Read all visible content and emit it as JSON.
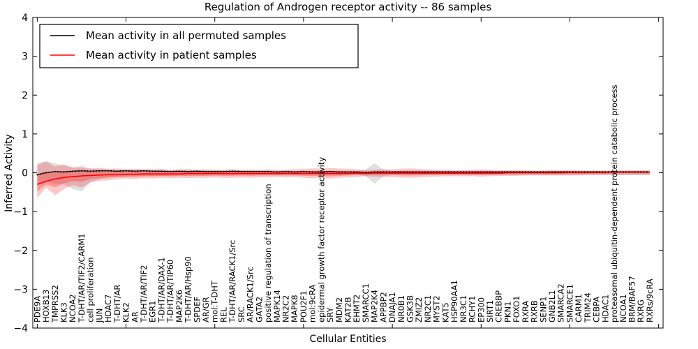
{
  "chart_data": {
    "type": "line",
    "title": "Regulation of Androgen receptor activity -- 86 samples",
    "xlabel": "Cellular Entities",
    "ylabel": "Inferred Activity",
    "ylim": [
      -4,
      4
    ],
    "yticks": [
      4,
      3,
      2,
      1,
      0,
      -1,
      -2,
      -3,
      -4
    ],
    "ytick_labels": [
      "4",
      "3",
      "2",
      "1",
      "0",
      "−1",
      "−2",
      "−3",
      "−4"
    ],
    "xtick_indices": [
      0,
      10,
      20,
      30,
      40,
      50,
      60,
      70
    ],
    "grid": false,
    "legend_position": "upper left",
    "legend": {
      "entries": [
        {
          "label": "Mean activity in all permuted samples",
          "color": "#000000"
        },
        {
          "label": "Mean activity in patient samples",
          "color": "#ff0000"
        }
      ]
    },
    "categories": [
      "PDE9A",
      "HOXB13",
      "TMPRSS2",
      "KLK3",
      "NCOA2",
      "T-DHT/AR/TIF2/CARM1",
      "cell proliferation",
      "JUN",
      "HDAC7",
      "T-DHT/AR",
      "KLK2",
      "AR",
      "T-DHT/AR/TIF2",
      "EGR1",
      "T-DHT/AR/DAX-1",
      "T-DHT/AR/TIP60",
      "MAP2K6",
      "T-DHT/AR/Hsp90",
      "SPDEF",
      "AR/GR",
      "mol:T-DHT",
      "REL",
      "T-DHT/AR/RACK1/Src",
      "SRC",
      "AR/RACK1/Src",
      "GATA2",
      "positive regulation of transcription",
      "MAPK14",
      "NR2C2",
      "MAPK8",
      "POU2F1",
      "mol:9cRA",
      "epidermal growth factor receptor activity",
      "SRY",
      "MDM2",
      "KAT2B",
      "EHMT2",
      "SMARCC1",
      "MAP2K4",
      "APPBP2",
      "DNAJA1",
      "NR0B1",
      "GSK3B",
      "ZMIZ2",
      "NR2C1",
      "MYST2",
      "KAT5",
      "HSP90AA1",
      "NR3C1",
      "RCHY1",
      "EP300",
      "SIRT1",
      "CREBBP",
      "PKN1",
      "FOXO1",
      "RXRA",
      "RXRB",
      "SENP1",
      "GNB2L1",
      "SMARCA2",
      "SMARCE1",
      "CARM1",
      "TRIM24",
      "CEBPA",
      "HDAC1",
      "proteasomal ubiquitin-dependent protein catabolic process",
      "NCOA1",
      "BRM/BAF57",
      "RXRG",
      "RXRs/9cRA"
    ],
    "series": [
      {
        "name": "Mean activity in all permuted samples",
        "color": "#000000",
        "values": [
          -0.05,
          0.0,
          0.03,
          0.02,
          0.04,
          0.05,
          0.04,
          0.05,
          0.05,
          0.04,
          0.05,
          0.04,
          0.05,
          0.04,
          0.04,
          0.03,
          0.04,
          0.03,
          0.04,
          0.03,
          0.03,
          0.03,
          0.04,
          0.03,
          0.03,
          0.03,
          0.03,
          0.02,
          0.03,
          0.02,
          0.03,
          0.02,
          0.02,
          0.03,
          0.02,
          0.02,
          0.02,
          0.01,
          0.02,
          0.02,
          0.02,
          0.02,
          0.02,
          0.02,
          0.02,
          0.02,
          0.02,
          0.02,
          0.02,
          0.02,
          0.02,
          0.02,
          0.02,
          0.02,
          0.02,
          0.02,
          0.02,
          0.02,
          0.02,
          0.02,
          0.02,
          0.02,
          0.02,
          0.02,
          0.02,
          0.02,
          0.02,
          0.02,
          0.02,
          0.02
        ]
      },
      {
        "name": "Mean activity in patient samples",
        "color": "#ff0000",
        "values": [
          -0.3,
          -0.22,
          -0.16,
          -0.12,
          -0.1,
          -0.08,
          -0.07,
          -0.06,
          -0.05,
          -0.05,
          -0.04,
          -0.04,
          -0.03,
          -0.03,
          -0.03,
          -0.03,
          -0.03,
          -0.02,
          -0.02,
          -0.02,
          -0.02,
          -0.02,
          -0.02,
          -0.02,
          -0.02,
          -0.02,
          -0.02,
          -0.02,
          -0.02,
          -0.02,
          -0.02,
          -0.02,
          -0.02,
          -0.02,
          -0.02,
          -0.02,
          -0.01,
          -0.02,
          -0.01,
          -0.01,
          -0.01,
          -0.01,
          -0.01,
          -0.01,
          -0.01,
          -0.01,
          -0.01,
          -0.01,
          -0.01,
          -0.01,
          -0.01,
          -0.01,
          -0.01,
          0.0,
          0.0,
          0.0,
          0.0,
          0.0,
          0.0,
          0.0,
          0.01,
          0.01,
          0.01,
          0.01,
          0.01,
          0.02,
          0.02,
          0.02,
          0.02,
          0.02
        ]
      }
    ],
    "bands": [
      {
        "name": "permuted-samples-range",
        "color": "#aaaaaa",
        "opacity": 0.38,
        "upper": [
          0.25,
          0.3,
          0.24,
          0.18,
          0.14,
          0.12,
          0.1,
          0.09,
          0.08,
          0.08,
          0.07,
          0.07,
          0.07,
          0.07,
          0.06,
          0.06,
          0.06,
          0.06,
          0.06,
          0.06,
          0.06,
          0.06,
          0.06,
          0.06,
          0.06,
          0.05,
          0.05,
          0.05,
          0.05,
          0.05,
          0.05,
          0.05,
          0.05,
          0.05,
          0.05,
          0.05,
          0.05,
          0.08,
          0.24,
          0.08,
          0.05,
          0.05,
          0.05,
          0.05,
          0.05,
          0.05,
          0.05,
          0.05,
          0.05,
          0.05,
          0.05,
          0.05,
          0.05,
          0.05,
          0.05,
          0.05,
          0.05,
          0.05,
          0.05,
          0.05,
          0.05,
          0.05,
          0.05,
          0.05,
          0.05,
          0.05,
          0.05,
          0.05,
          0.05,
          0.05
        ],
        "lower": [
          -0.3,
          -0.22,
          -0.28,
          -0.3,
          -0.42,
          -0.48,
          -0.25,
          -0.16,
          -0.13,
          -0.11,
          -0.1,
          -0.09,
          -0.09,
          -0.08,
          -0.08,
          -0.08,
          -0.07,
          -0.07,
          -0.07,
          -0.07,
          -0.07,
          -0.07,
          -0.06,
          -0.06,
          -0.06,
          -0.06,
          -0.06,
          -0.06,
          -0.06,
          -0.06,
          -0.06,
          -0.06,
          -0.06,
          -0.06,
          -0.06,
          -0.06,
          -0.06,
          -0.09,
          -0.28,
          -0.09,
          -0.06,
          -0.06,
          -0.06,
          -0.06,
          -0.06,
          -0.06,
          -0.06,
          -0.06,
          -0.06,
          -0.06,
          -0.06,
          -0.06,
          -0.06,
          -0.06,
          -0.06,
          -0.06,
          -0.06,
          -0.06,
          -0.06,
          -0.06,
          -0.06,
          -0.06,
          -0.06,
          -0.06,
          -0.06,
          -0.06,
          -0.06,
          -0.06,
          -0.06,
          -0.06
        ]
      },
      {
        "name": "patient-samples-range-outer",
        "color": "#ff0000",
        "opacity": 0.22,
        "upper": [
          0.2,
          0.28,
          0.16,
          0.22,
          0.13,
          0.17,
          0.11,
          0.13,
          0.1,
          0.11,
          0.09,
          0.1,
          0.09,
          0.09,
          0.1,
          0.08,
          0.09,
          0.1,
          0.08,
          0.09,
          0.08,
          0.08,
          0.09,
          0.08,
          0.08,
          0.08,
          0.09,
          0.08,
          0.08,
          0.09,
          0.1,
          0.11,
          0.11,
          0.12,
          0.11,
          0.1,
          0.09,
          0.07,
          0.08,
          0.09,
          0.09,
          0.1,
          0.11,
          0.1,
          0.09,
          0.08,
          0.08,
          0.07,
          0.07,
          0.08,
          0.09,
          0.08,
          0.07,
          0.07,
          0.07,
          0.07,
          0.06,
          0.06,
          0.07,
          0.07,
          0.07,
          0.06,
          0.06,
          0.06,
          0.06,
          0.06,
          0.06,
          0.06,
          0.06,
          0.06
        ],
        "lower": [
          -0.65,
          -0.38,
          -0.58,
          -0.42,
          -0.32,
          -0.38,
          -0.24,
          -0.21,
          -0.19,
          -0.17,
          -0.15,
          -0.16,
          -0.14,
          -0.15,
          -0.13,
          -0.14,
          -0.13,
          -0.14,
          -0.13,
          -0.13,
          -0.12,
          -0.13,
          -0.13,
          -0.12,
          -0.13,
          -0.12,
          -0.12,
          -0.11,
          -0.12,
          -0.11,
          -0.13,
          -0.14,
          -0.14,
          -0.15,
          -0.13,
          -0.12,
          -0.11,
          -0.09,
          -0.1,
          -0.11,
          -0.11,
          -0.12,
          -0.13,
          -0.12,
          -0.11,
          -0.1,
          -0.09,
          -0.09,
          -0.09,
          -0.09,
          -0.1,
          -0.09,
          -0.08,
          -0.08,
          -0.08,
          -0.07,
          -0.07,
          -0.07,
          -0.07,
          -0.07,
          -0.07,
          -0.07,
          -0.06,
          -0.06,
          -0.06,
          -0.06,
          -0.06,
          -0.06,
          -0.06,
          -0.05
        ]
      },
      {
        "name": "patient-samples-range-inner",
        "color": "#ff0000",
        "opacity": 0.25,
        "upper": [
          -0.05,
          0.03,
          0.0,
          0.05,
          0.02,
          0.05,
          0.02,
          0.04,
          0.03,
          0.03,
          0.03,
          0.03,
          0.03,
          0.03,
          0.04,
          0.03,
          0.03,
          0.04,
          0.03,
          0.04,
          0.03,
          0.03,
          0.04,
          0.03,
          0.03,
          0.03,
          0.04,
          0.03,
          0.03,
          0.04,
          0.04,
          0.05,
          0.05,
          0.05,
          0.05,
          0.04,
          0.04,
          0.03,
          0.04,
          0.04,
          0.04,
          0.05,
          0.05,
          0.05,
          0.04,
          0.04,
          0.04,
          0.03,
          0.03,
          0.04,
          0.04,
          0.04,
          0.03,
          0.04,
          0.04,
          0.04,
          0.03,
          0.03,
          0.04,
          0.04,
          0.04,
          0.04,
          0.04,
          0.04,
          0.04,
          0.04,
          0.04,
          0.04,
          0.04,
          0.04
        ],
        "lower": [
          -0.48,
          -0.3,
          -0.37,
          -0.27,
          -0.21,
          -0.23,
          -0.16,
          -0.14,
          -0.12,
          -0.11,
          -0.1,
          -0.1,
          -0.09,
          -0.09,
          -0.08,
          -0.09,
          -0.08,
          -0.08,
          -0.08,
          -0.08,
          -0.07,
          -0.08,
          -0.08,
          -0.07,
          -0.08,
          -0.07,
          -0.07,
          -0.07,
          -0.07,
          -0.07,
          -0.08,
          -0.08,
          -0.08,
          -0.09,
          -0.08,
          -0.07,
          -0.06,
          -0.06,
          -0.06,
          -0.06,
          -0.06,
          -0.07,
          -0.07,
          -0.07,
          -0.06,
          -0.06,
          -0.05,
          -0.05,
          -0.05,
          -0.05,
          -0.06,
          -0.05,
          -0.05,
          -0.04,
          -0.04,
          -0.04,
          -0.04,
          -0.04,
          -0.04,
          -0.04,
          -0.03,
          -0.03,
          -0.03,
          -0.03,
          -0.03,
          -0.02,
          -0.02,
          -0.02,
          -0.02,
          -0.02
        ]
      }
    ]
  }
}
